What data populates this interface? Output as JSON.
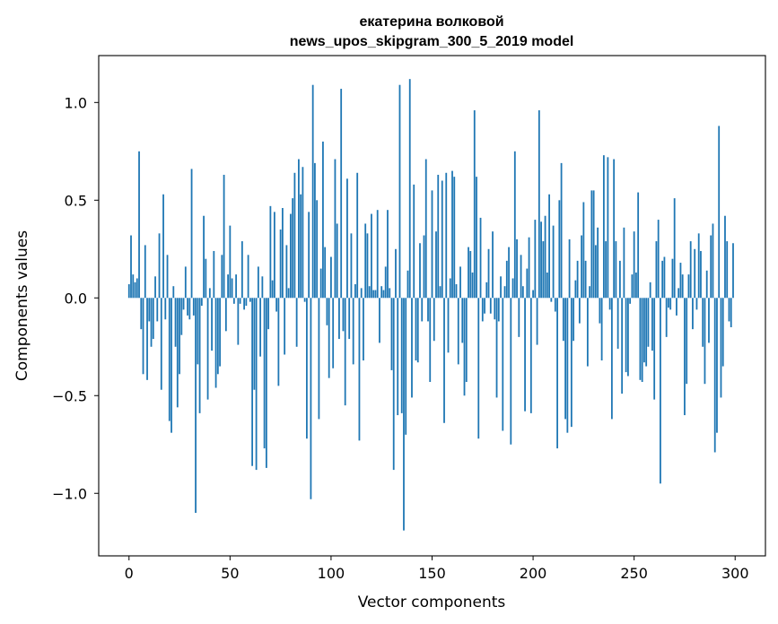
{
  "chart_data": {
    "type": "bar",
    "title_lines": [
      "екатерина волковой",
      "news_upos_skipgram_300_5_2019 model"
    ],
    "xlabel": "Vector components",
    "ylabel": "Components values",
    "xlim": [
      -15,
      315
    ],
    "ylim": [
      -1.32,
      1.24
    ],
    "xticks": [
      0,
      50,
      100,
      150,
      200,
      250,
      300
    ],
    "yticks": [
      -1.0,
      -0.5,
      0.0,
      0.5,
      1.0
    ],
    "ytick_labels": [
      "−1.0",
      "−0.5",
      "0.0",
      "0.5",
      "1.0"
    ],
    "bar_color": "#1f77b4",
    "grid": false,
    "x": "indices 0..299",
    "values": [
      0.07,
      0.32,
      0.12,
      0.08,
      0.1,
      0.75,
      -0.16,
      -0.39,
      0.27,
      -0.42,
      -0.12,
      -0.25,
      -0.21,
      0.11,
      -0.12,
      0.33,
      -0.47,
      0.53,
      -0.11,
      0.22,
      -0.63,
      -0.69,
      0.06,
      -0.25,
      -0.56,
      -0.39,
      -0.19,
      -0.06,
      0.16,
      -0.09,
      -0.11,
      0.66,
      -0.09,
      -1.1,
      -0.34,
      -0.59,
      -0.04,
      0.42,
      0.2,
      -0.52,
      0.05,
      -0.27,
      0.24,
      -0.46,
      -0.39,
      -0.35,
      0.22,
      0.63,
      -0.17,
      0.12,
      0.37,
      0.1,
      -0.03,
      0.12,
      -0.24,
      -0.03,
      0.29,
      -0.06,
      -0.04,
      0.22,
      -0.02,
      -0.86,
      -0.47,
      -0.88,
      0.16,
      -0.3,
      0.11,
      -0.77,
      -0.87,
      -0.16,
      0.47,
      0.09,
      0.44,
      -0.07,
      -0.45,
      0.35,
      0.46,
      -0.29,
      0.27,
      0.05,
      0.43,
      0.51,
      0.64,
      -0.25,
      0.71,
      0.53,
      0.67,
      -0.02,
      -0.72,
      0.44,
      -1.03,
      1.09,
      0.69,
      0.5,
      -0.62,
      0.15,
      0.8,
      0.26,
      -0.14,
      -0.41,
      0.21,
      -0.36,
      0.71,
      0.38,
      -0.21,
      1.07,
      -0.17,
      -0.55,
      0.61,
      -0.21,
      0.33,
      -0.34,
      0.07,
      0.64,
      -0.73,
      0.05,
      -0.32,
      0.38,
      0.33,
      0.06,
      0.43,
      0.04,
      0.04,
      0.45,
      -0.23,
      0.06,
      0.04,
      0.16,
      0.45,
      0.05,
      -0.37,
      -0.88,
      0.25,
      -0.6,
      1.09,
      -0.59,
      -1.19,
      -0.7,
      0.14,
      1.12,
      -0.51,
      0.58,
      -0.32,
      -0.33,
      0.28,
      -0.12,
      0.32,
      0.71,
      -0.12,
      -0.43,
      0.55,
      -0.22,
      0.34,
      0.63,
      0.06,
      0.6,
      -0.64,
      0.64,
      -0.28,
      0.1,
      0.65,
      0.62,
      0.07,
      -0.34,
      0.16,
      -0.23,
      -0.5,
      -0.43,
      0.26,
      0.24,
      0.13,
      0.96,
      0.62,
      -0.72,
      0.41,
      -0.12,
      -0.08,
      0.08,
      0.25,
      -0.08,
      0.34,
      -0.11,
      -0.51,
      -0.12,
      0.11,
      -0.68,
      0.06,
      0.19,
      0.26,
      -0.75,
      0.1,
      0.75,
      0.3,
      -0.2,
      0.22,
      0.06,
      -0.58,
      0.15,
      0.31,
      -0.59,
      0.04,
      0.4,
      -0.24,
      0.96,
      0.39,
      0.29,
      0.42,
      0.13,
      0.53,
      -0.02,
      0.37,
      -0.07,
      -0.77,
      0.5,
      0.69,
      -0.22,
      -0.62,
      -0.69,
      0.3,
      -0.66,
      -0.22,
      0.09,
      0.19,
      -0.13,
      0.32,
      0.49,
      0.19,
      -0.35,
      0.06,
      0.55,
      0.55,
      0.27,
      0.36,
      -0.13,
      -0.32,
      0.73,
      0.29,
      0.72,
      -0.06,
      -0.62,
      0.71,
      0.29,
      -0.26,
      0.19,
      -0.49,
      0.36,
      -0.38,
      -0.4,
      -0.03,
      0.12,
      0.34,
      0.13,
      0.54,
      -0.42,
      -0.43,
      -0.33,
      -0.35,
      -0.25,
      0.08,
      -0.27,
      -0.52,
      0.29,
      0.4,
      -0.95,
      0.19,
      0.21,
      -0.2,
      -0.05,
      -0.06,
      0.2,
      0.51,
      -0.09,
      0.05,
      0.18,
      0.12,
      -0.6,
      -0.44,
      0.12,
      0.29,
      -0.16,
      0.25,
      -0.06,
      0.33,
      0.24,
      -0.25,
      -0.44,
      0.14,
      -0.23,
      0.32,
      0.38,
      -0.79,
      -0.69,
      0.88,
      -0.51,
      -0.35,
      0.42,
      0.29,
      -0.12,
      -0.15,
      0.28
    ]
  }
}
